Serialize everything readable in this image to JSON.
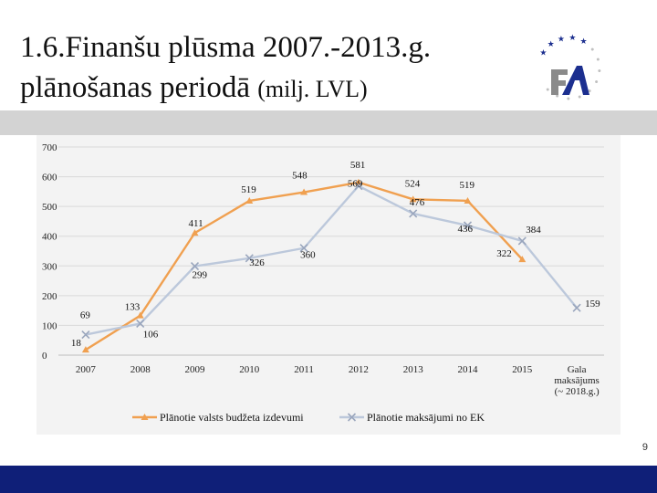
{
  "slide": {
    "title_line1": "1.6.Finanšu plūsma 2007.-2013.g.",
    "title_line2": "plānošanas periodā",
    "title_unit": "(milj. LVL)",
    "page_number": "9"
  },
  "colors": {
    "series1": "#f0a050",
    "series2": "#bcc8db",
    "footer": "#0f1f78",
    "band": "#d3d3d3",
    "logo_star": "#1c2f8f",
    "logo_dot": "#c0c0c0"
  },
  "chart_data": {
    "type": "line",
    "categories": [
      "2007",
      "2008",
      "2009",
      "2010",
      "2011",
      "2012",
      "2013",
      "2014",
      "2015",
      "Gala maksājums (~ 2018.g.)"
    ],
    "ylim": [
      0,
      700
    ],
    "yticks": [
      0,
      100,
      200,
      300,
      400,
      500,
      600,
      700
    ],
    "grid": true,
    "legend": "bottom",
    "series": [
      {
        "name": "Plānotie valsts budžeta izdevumi",
        "values": [
          18,
          133,
          411,
          519,
          548,
          581,
          524,
          519,
          322,
          null
        ],
        "labels": [
          "18",
          "133",
          "411",
          "519",
          "548",
          "581",
          "524",
          "519",
          "322",
          ""
        ]
      },
      {
        "name": "Plānotie maksājumi no EK",
        "values": [
          69,
          106,
          299,
          326,
          360,
          569,
          476,
          436,
          384,
          159
        ],
        "labels": [
          "69",
          "106",
          "299",
          "326",
          "360",
          "569",
          "476",
          "436",
          "384",
          "159"
        ]
      }
    ]
  }
}
